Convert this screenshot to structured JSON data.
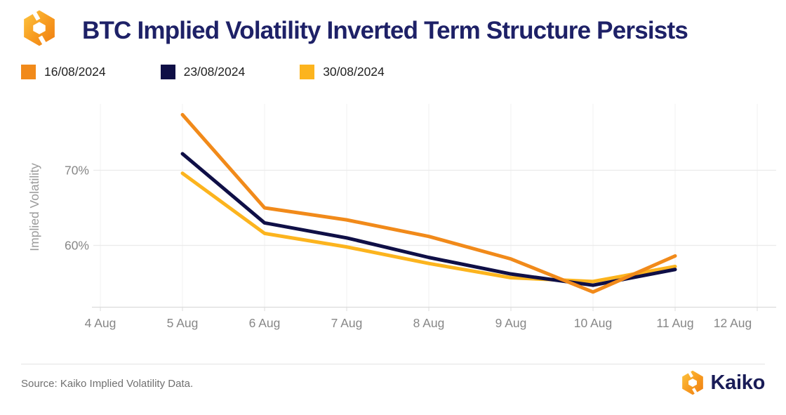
{
  "header": {
    "title": "BTC Implied Volatility Inverted Term Structure Persists",
    "logo": "kaiko-hexagon-mark"
  },
  "legend": [
    {
      "label": "16/08/2024",
      "color": "#F18A1A"
    },
    {
      "label": "23/08/2024",
      "color": "#0F0F46"
    },
    {
      "label": "30/08/2024",
      "color": "#FCB41E"
    }
  ],
  "chart_data": {
    "type": "line",
    "title": "BTC Implied Volatility Inverted Term Structure Persists",
    "ylabel": "Implied Volatility",
    "xlabel": "",
    "x_labels": [
      "4 Aug",
      "5 Aug",
      "6 Aug",
      "7 Aug",
      "8 Aug",
      "9 Aug",
      "10 Aug",
      "11 Aug",
      "12 Aug"
    ],
    "x_start_index": 1,
    "series": [
      {
        "name": "16/08/2024",
        "color": "#F18A1A",
        "values": [
          77.4,
          65.0,
          63.4,
          61.2,
          58.2,
          53.8,
          58.6
        ]
      },
      {
        "name": "23/08/2024",
        "color": "#0F0F46",
        "values": [
          72.2,
          63.0,
          61.0,
          58.4,
          56.2,
          54.7,
          56.8
        ]
      },
      {
        "name": "30/08/2024",
        "color": "#FCB41E",
        "values": [
          69.6,
          61.6,
          59.8,
          57.6,
          55.7,
          55.2,
          57.2
        ]
      }
    ],
    "yticks": [
      {
        "value": 70,
        "label": "70%"
      },
      {
        "value": 60,
        "label": "60%"
      }
    ],
    "ylim": [
      52,
      80
    ],
    "grid": true,
    "legend_position": "top-left",
    "unit": "%"
  },
  "footer": {
    "source": "Source: Kaiko Implied Volatility Data.",
    "brand": "Kaiko"
  }
}
